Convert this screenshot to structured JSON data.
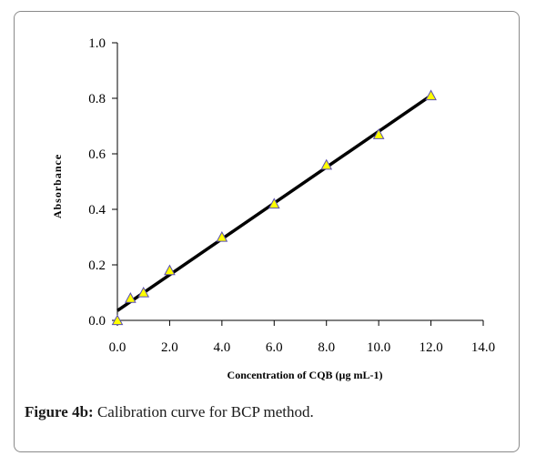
{
  "caption": {
    "label": "Figure 4b:",
    "text": " Calibration curve for BCP method."
  },
  "chart_data": {
    "type": "scatter",
    "xlabel": "Concentration of  CQB (µg mL-1)",
    "ylabel": "Absorbance",
    "xlim": [
      0,
      14
    ],
    "ylim": [
      0,
      1
    ],
    "x_ticks": [
      "0.0",
      "2.0",
      "4.0",
      "6.0",
      "8.0",
      "10.0",
      "12.0",
      "14.0"
    ],
    "y_ticks": [
      "0.0",
      "0.2",
      "0.4",
      "0.6",
      "0.8",
      "1.0"
    ],
    "grid": false,
    "legend": "none",
    "series": [
      {
        "x": [
          0,
          0.5,
          1,
          2,
          4,
          6,
          8,
          10,
          12
        ],
        "y": [
          0.0,
          0.08,
          0.1,
          0.18,
          0.3,
          0.42,
          0.56,
          0.67,
          0.81
        ]
      }
    ],
    "trendline": {
      "x": [
        0,
        12
      ],
      "y": [
        0.035,
        0.81
      ]
    },
    "colors": {
      "marker_fill": "#ffff00",
      "marker_stroke": "#5a4fb0",
      "trendline": "#000000",
      "axis": "#000000"
    }
  }
}
